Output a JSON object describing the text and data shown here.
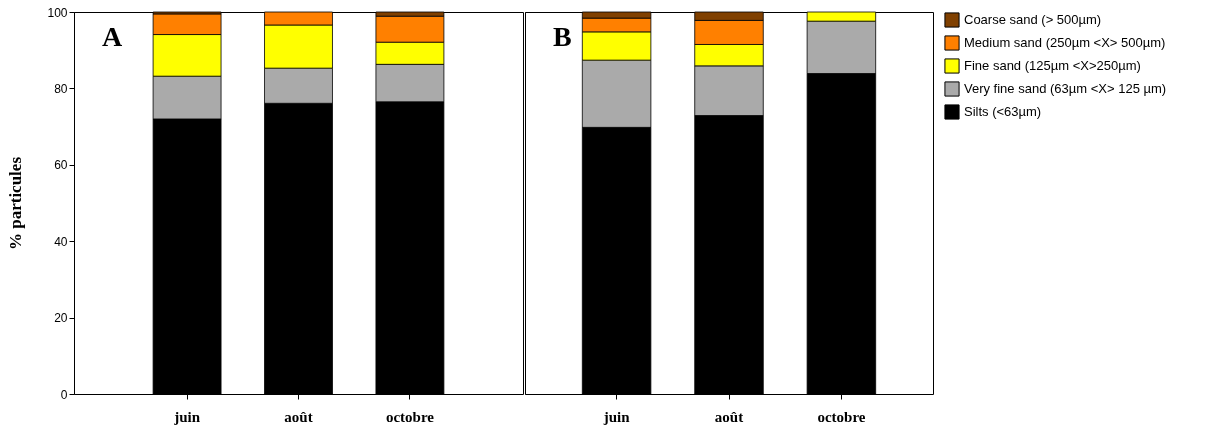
{
  "chart_data": [
    {
      "type": "bar",
      "title": "A",
      "ylabel": "% particules",
      "stacked": true,
      "categories": [
        "juin",
        "août",
        "octobre"
      ],
      "ylim": [
        0,
        100
      ],
      "yticks": [
        0,
        20,
        40,
        60,
        80,
        100
      ],
      "grid": false,
      "legend": "top right",
      "series": [
        {
          "name": "Silts (<63µm)",
          "color": "#000000",
          "values": [
            72,
            76.1,
            76.5
          ]
        },
        {
          "name": "Very fine sand (63µm <X> 125 µm)",
          "color": "#aaaaaa",
          "values": [
            11.2,
            9.2,
            9.8
          ]
        },
        {
          "name": "Fine sand (125µm <X>250µm)",
          "color": "#ffff00",
          "values": [
            10.9,
            11.3,
            5.8
          ]
        },
        {
          "name": "Medium sand (250µm <X> 500µm)",
          "color": "#ff8000",
          "values": [
            5.4,
            3.4,
            6.8
          ]
        },
        {
          "name": "Coarse sand (> 500µm)",
          "color": "#804000",
          "values": [
            0.5,
            null,
            1.1
          ]
        }
      ]
    },
    {
      "type": "bar",
      "title": "B",
      "stacked": true,
      "categories": [
        "juin",
        "août",
        "octobre"
      ],
      "ylim": [
        0,
        100
      ],
      "yticks": [
        0,
        20,
        40,
        60,
        80,
        100
      ],
      "tick_labels": "x",
      "grid": false,
      "legend": "top right",
      "series": [
        {
          "name": "Silts (<63µm)",
          "color": "#000000",
          "values": [
            69.8,
            72.9,
            83.9
          ]
        },
        {
          "name": "Very fine sand (63µm <X> 125 µm)",
          "color": "#aaaaaa",
          "values": [
            17.6,
            13,
            13.7
          ]
        },
        {
          "name": "Fine sand (125µm <X>250µm)",
          "color": "#ffff00",
          "values": [
            7.4,
            5.6,
            2.4
          ]
        },
        {
          "name": "Medium sand (250µm <X> 500µm)",
          "color": "#ff8000",
          "values": [
            3.6,
            6.3,
            null
          ]
        },
        {
          "name": "Coarse sand (> 500µm)",
          "color": "#804000",
          "values": [
            1.6,
            2.2,
            null
          ]
        }
      ]
    }
  ]
}
